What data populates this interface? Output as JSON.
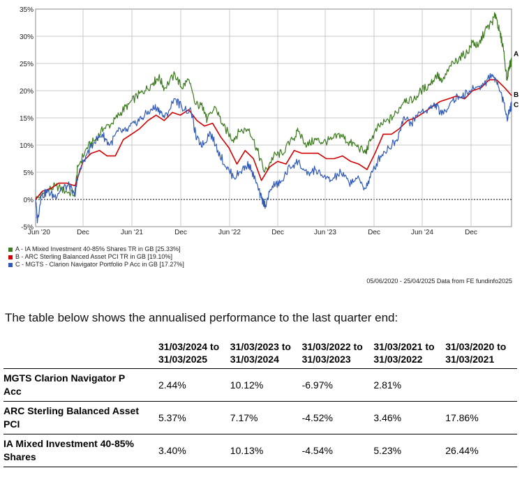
{
  "chart_data": {
    "type": "line",
    "title": "",
    "xlabel": "",
    "ylabel": "",
    "ylim": [
      -5,
      35
    ],
    "y_ticks": [
      "-5%",
      "0%",
      "5%",
      "10%",
      "15%",
      "20%",
      "25%",
      "30%",
      "35%"
    ],
    "x_ticks": [
      "Jun '20",
      "Dec",
      "Jun '21",
      "Dec",
      "Jun '22",
      "Dec",
      "Jun '23",
      "Dec",
      "Jun '24",
      "Dec"
    ],
    "x_range": [
      "2020-06-05",
      "2025-04-25"
    ],
    "grid": true,
    "legend_position": "bottom-left",
    "series": [
      {
        "name": "A - IA Mixed Investment 40-85% Shares TR in GB [25.33%]",
        "label": "A",
        "color": "#3c7a1e",
        "points": [
          [
            "2020-06-05",
            0
          ],
          [
            "2020-07-15",
            1.5
          ],
          [
            "2020-08-20",
            2.5
          ],
          [
            "2020-09-25",
            1.5
          ],
          [
            "2020-10-30",
            1.0
          ],
          [
            "2020-11-10",
            6.0
          ],
          [
            "2020-12-15",
            9.5
          ],
          [
            "2021-01-15",
            11.0
          ],
          [
            "2021-02-15",
            13.0
          ],
          [
            "2021-03-20",
            14.0
          ],
          [
            "2021-04-20",
            16.0
          ],
          [
            "2021-05-20",
            17.5
          ],
          [
            "2021-06-20",
            19.0
          ],
          [
            "2021-07-20",
            20.0
          ],
          [
            "2021-08-20",
            21.5
          ],
          [
            "2021-09-10",
            22.5
          ],
          [
            "2021-10-01",
            20.5
          ],
          [
            "2021-11-10",
            23.0
          ],
          [
            "2021-12-05",
            20.5
          ],
          [
            "2021-12-30",
            22.0
          ],
          [
            "2022-01-25",
            17.5
          ],
          [
            "2022-02-25",
            17.0
          ],
          [
            "2022-03-10",
            14.5
          ],
          [
            "2022-04-10",
            17.0
          ],
          [
            "2022-05-10",
            13.5
          ],
          [
            "2022-06-15",
            11.0
          ],
          [
            "2022-07-10",
            12.5
          ],
          [
            "2022-08-15",
            13.0
          ],
          [
            "2022-09-15",
            9.0
          ],
          [
            "2022-10-12",
            5.0
          ],
          [
            "2022-11-15",
            8.0
          ],
          [
            "2022-12-15",
            8.5
          ],
          [
            "2023-01-25",
            11.0
          ],
          [
            "2023-02-15",
            12.5
          ],
          [
            "2023-03-20",
            10.0
          ],
          [
            "2023-04-20",
            11.0
          ],
          [
            "2023-05-20",
            10.5
          ],
          [
            "2023-06-20",
            11.0
          ],
          [
            "2023-07-25",
            12.0
          ],
          [
            "2023-08-20",
            10.5
          ],
          [
            "2023-09-20",
            10.0
          ],
          [
            "2023-10-25",
            8.5
          ],
          [
            "2023-11-15",
            11.0
          ],
          [
            "2023-12-15",
            13.5
          ],
          [
            "2024-01-20",
            14.5
          ],
          [
            "2024-02-20",
            16.0
          ],
          [
            "2024-03-20",
            18.5
          ],
          [
            "2024-04-20",
            18.0
          ],
          [
            "2024-05-20",
            20.0
          ],
          [
            "2024-06-20",
            21.0
          ],
          [
            "2024-07-20",
            23.0
          ],
          [
            "2024-08-06",
            21.5
          ],
          [
            "2024-09-10",
            24.5
          ],
          [
            "2024-10-10",
            26.0
          ],
          [
            "2024-11-10",
            27.0
          ],
          [
            "2024-12-01",
            29.0
          ],
          [
            "2024-12-20",
            28.0
          ],
          [
            "2025-01-15",
            31.0
          ],
          [
            "2025-02-10",
            32.5
          ],
          [
            "2025-02-25",
            34.0
          ],
          [
            "2025-03-10",
            31.0
          ],
          [
            "2025-03-25",
            28.0
          ],
          [
            "2025-04-08",
            22.0
          ],
          [
            "2025-04-16",
            24.5
          ],
          [
            "2025-04-25",
            25.33
          ]
        ]
      },
      {
        "name": "B - ARC Sterling Balanced Asset PCI TR in GB [19.10%]",
        "label": "B",
        "color": "#d00000",
        "points": [
          [
            "2020-06-05",
            0
          ],
          [
            "2020-06-30",
            1.5
          ],
          [
            "2020-07-31",
            2.0
          ],
          [
            "2020-08-31",
            3.0
          ],
          [
            "2020-09-30",
            3.0
          ],
          [
            "2020-10-31",
            2.5
          ],
          [
            "2020-11-30",
            7.0
          ],
          [
            "2020-12-31",
            8.5
          ],
          [
            "2021-01-31",
            9.0
          ],
          [
            "2021-02-28",
            8.0
          ],
          [
            "2021-03-31",
            8.0
          ],
          [
            "2021-04-30",
            11.0
          ],
          [
            "2021-05-31",
            12.0
          ],
          [
            "2021-06-30",
            13.0
          ],
          [
            "2021-07-31",
            14.5
          ],
          [
            "2021-08-31",
            15.5
          ],
          [
            "2021-09-30",
            14.5
          ],
          [
            "2021-10-31",
            16.0
          ],
          [
            "2021-11-30",
            15.5
          ],
          [
            "2021-12-31",
            16.5
          ],
          [
            "2022-01-31",
            14.5
          ],
          [
            "2022-02-28",
            13.5
          ],
          [
            "2022-03-31",
            14.0
          ],
          [
            "2022-04-30",
            11.5
          ],
          [
            "2022-05-31",
            9.5
          ],
          [
            "2022-06-30",
            6.5
          ],
          [
            "2022-07-31",
            9.0
          ],
          [
            "2022-08-31",
            7.5
          ],
          [
            "2022-09-30",
            3.5
          ],
          [
            "2022-10-31",
            6.0
          ],
          [
            "2022-11-30",
            7.0
          ],
          [
            "2022-12-31",
            6.5
          ],
          [
            "2023-01-31",
            9.0
          ],
          [
            "2023-02-28",
            8.5
          ],
          [
            "2023-03-31",
            8.5
          ],
          [
            "2023-04-30",
            8.5
          ],
          [
            "2023-05-31",
            7.5
          ],
          [
            "2023-06-30",
            7.5
          ],
          [
            "2023-07-31",
            8.0
          ],
          [
            "2023-08-31",
            7.0
          ],
          [
            "2023-09-30",
            6.5
          ],
          [
            "2023-10-31",
            5.5
          ],
          [
            "2023-11-30",
            8.5
          ],
          [
            "2023-12-31",
            12.0
          ],
          [
            "2024-01-31",
            12.0
          ],
          [
            "2024-02-29",
            13.0
          ],
          [
            "2024-03-31",
            14.5
          ],
          [
            "2024-04-30",
            15.0
          ],
          [
            "2024-05-31",
            16.0
          ],
          [
            "2024-06-30",
            17.0
          ],
          [
            "2024-07-31",
            18.0
          ],
          [
            "2024-08-31",
            18.5
          ],
          [
            "2024-09-30",
            19.0
          ],
          [
            "2024-10-31",
            18.5
          ],
          [
            "2024-11-30",
            20.0
          ],
          [
            "2024-12-31",
            20.5
          ],
          [
            "2025-01-31",
            22.0
          ],
          [
            "2025-02-28",
            22.0
          ],
          [
            "2025-03-31",
            20.5
          ],
          [
            "2025-04-25",
            19.1
          ]
        ]
      },
      {
        "name": "C - MGTS - Clarion Navigator Portfolio P Acc in GB [17.27%]",
        "label": "C",
        "color": "#2f59b8",
        "points": [
          [
            "2020-06-05",
            0
          ],
          [
            "2020-06-12",
            -4.0
          ],
          [
            "2020-06-25",
            0.5
          ],
          [
            "2020-07-20",
            1.5
          ],
          [
            "2020-08-15",
            0.5
          ],
          [
            "2020-09-10",
            2.0
          ],
          [
            "2020-10-10",
            2.5
          ],
          [
            "2020-10-30",
            0.5
          ],
          [
            "2020-11-12",
            4.5
          ],
          [
            "2020-12-10",
            8.0
          ],
          [
            "2021-01-10",
            10.5
          ],
          [
            "2021-02-10",
            12.0
          ],
          [
            "2021-03-10",
            10.0
          ],
          [
            "2021-04-10",
            12.5
          ],
          [
            "2021-05-10",
            12.5
          ],
          [
            "2021-06-10",
            14.0
          ],
          [
            "2021-07-10",
            15.0
          ],
          [
            "2021-08-10",
            16.5
          ],
          [
            "2021-09-05",
            17.0
          ],
          [
            "2021-10-01",
            15.0
          ],
          [
            "2021-11-10",
            18.5
          ],
          [
            "2021-12-05",
            17.0
          ],
          [
            "2022-01-10",
            16.0
          ],
          [
            "2022-01-30",
            11.0
          ],
          [
            "2022-02-25",
            10.0
          ],
          [
            "2022-03-20",
            12.5
          ],
          [
            "2022-04-20",
            9.0
          ],
          [
            "2022-05-20",
            6.0
          ],
          [
            "2022-06-20",
            4.0
          ],
          [
            "2022-07-20",
            5.5
          ],
          [
            "2022-08-15",
            6.5
          ],
          [
            "2022-09-10",
            3.0
          ],
          [
            "2022-10-01",
            0.0
          ],
          [
            "2022-10-15",
            -1.0
          ],
          [
            "2022-11-10",
            2.5
          ],
          [
            "2022-12-10",
            3.0
          ],
          [
            "2023-01-15",
            6.0
          ],
          [
            "2023-02-15",
            7.0
          ],
          [
            "2023-03-20",
            4.5
          ],
          [
            "2023-04-20",
            5.5
          ],
          [
            "2023-05-20",
            4.0
          ],
          [
            "2023-06-20",
            3.5
          ],
          [
            "2023-07-25",
            5.0
          ],
          [
            "2023-08-25",
            3.0
          ],
          [
            "2023-09-25",
            4.0
          ],
          [
            "2023-10-25",
            2.0
          ],
          [
            "2023-11-20",
            5.0
          ],
          [
            "2023-12-20",
            8.0
          ],
          [
            "2024-01-20",
            9.5
          ],
          [
            "2024-02-20",
            11.0
          ],
          [
            "2024-03-15",
            15.0
          ],
          [
            "2024-04-15",
            14.0
          ],
          [
            "2024-05-15",
            16.0
          ],
          [
            "2024-06-15",
            16.5
          ],
          [
            "2024-07-15",
            17.5
          ],
          [
            "2024-08-06",
            15.5
          ],
          [
            "2024-09-10",
            18.0
          ],
          [
            "2024-10-10",
            19.0
          ],
          [
            "2024-11-10",
            19.5
          ],
          [
            "2024-12-10",
            20.5
          ],
          [
            "2025-01-10",
            21.0
          ],
          [
            "2025-02-10",
            23.0
          ],
          [
            "2025-02-25",
            22.0
          ],
          [
            "2025-03-20",
            19.0
          ],
          [
            "2025-04-08",
            15.0
          ],
          [
            "2025-04-18",
            16.5
          ],
          [
            "2025-04-25",
            17.27
          ]
        ]
      }
    ]
  },
  "legend": [
    {
      "text": "A - IA Mixed Investment 40-85% Shares TR in GB [25.33%]",
      "color": "#3c7a1e"
    },
    {
      "text": "B - ARC Sterling Balanced Asset PCI TR in GB [19.10%]",
      "color": "#d00000"
    },
    {
      "text": "C - MGTS - Clarion Navigator Portfolio P Acc in GB [17.27%]",
      "color": "#2f59b8"
    }
  ],
  "source_note": "05/06/2020 - 25/04/2025 Data from FE fundinfo2025",
  "intro_text": "The table below shows the annualised performance to the last quarter end:",
  "table": {
    "headers": [
      [
        "31/03/2024 to",
        "31/03/2025"
      ],
      [
        "31/03/2023 to",
        "31/03/2024"
      ],
      [
        "31/03/2022 to",
        "31/03/2023"
      ],
      [
        "31/03/2021 to",
        "31/03/2022"
      ],
      [
        "31/03/2020 to",
        "31/03/2021"
      ]
    ],
    "rows": [
      {
        "fund": [
          "MGTS Clarion Navigator P",
          "Acc"
        ],
        "values": [
          "2.44%",
          "10.12%",
          "-6.97%",
          "2.81%",
          ""
        ]
      },
      {
        "fund": [
          "ARC Sterling Balanced Asset",
          "PCI"
        ],
        "values": [
          "5.37%",
          "7.17%",
          "-4.52%",
          "3.46%",
          "17.86%"
        ]
      },
      {
        "fund": [
          "IA Mixed Investment 40-85%",
          "Shares"
        ],
        "values": [
          "3.40%",
          "10.13%",
          "-4.54%",
          "5.23%",
          "26.44%"
        ]
      }
    ]
  }
}
